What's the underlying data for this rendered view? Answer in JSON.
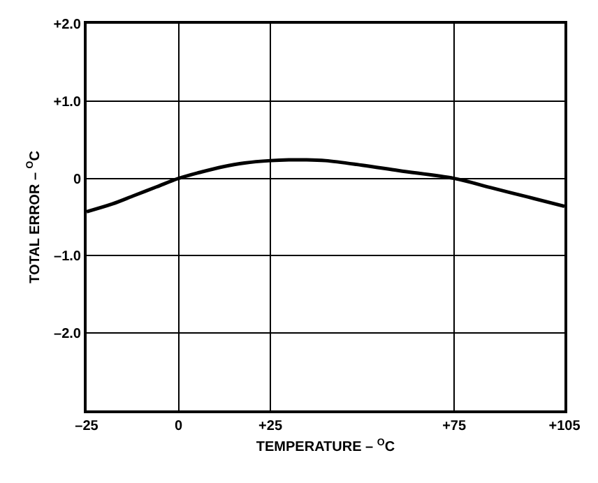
{
  "chart_data": {
    "type": "line",
    "xlabel": "TEMPERATURE – $^{O}$C",
    "ylabel": "TOTAL ERROR – $^{O}$C",
    "x": [
      -25,
      -18,
      -12,
      -6,
      0,
      6,
      12,
      18,
      25,
      30,
      34,
      40,
      50,
      60,
      75,
      85,
      95,
      105
    ],
    "series": [
      {
        "color": "#000000",
        "values": [
          -0.43,
          -0.33,
          -0.22,
          -0.11,
          0.0,
          0.08,
          0.15,
          0.2,
          0.23,
          0.24,
          0.24,
          0.23,
          0.17,
          0.1,
          0.0,
          -0.12,
          -0.24,
          -0.36
        ]
      }
    ],
    "xlim": [
      -25,
      105
    ],
    "xticks": [
      {
        "value": -25,
        "label": "–25"
      },
      0,
      {
        "value": 25,
        "label": "+25"
      },
      {
        "value": 75,
        "label": "+75"
      },
      {
        "value": 105,
        "label": "+105"
      }
    ],
    "ylim": [
      -3,
      2
    ],
    "yticks": [
      {
        "value": -2,
        "label": "–2.0"
      },
      {
        "value": -1,
        "label": "–1.0"
      },
      0,
      {
        "value": 1,
        "label": "+1.0"
      },
      {
        "value": 2,
        "label": "+2.0"
      }
    ],
    "grid": true,
    "marker": "none",
    "line_style": "solid"
  }
}
